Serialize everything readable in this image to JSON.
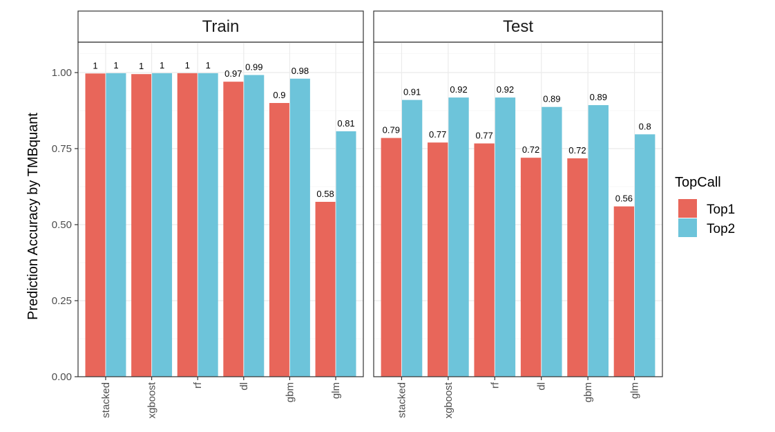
{
  "chart_data": {
    "type": "bar",
    "ylabel": "Prediction Accuracy by TMBquant",
    "xlabel": "",
    "ylim": [
      0,
      1.1
    ],
    "yticks": [
      0,
      0.25,
      0.5,
      0.75,
      1.0
    ],
    "ytick_labels": [
      "0.00",
      "0.25",
      "0.50",
      "0.75",
      "1.00"
    ],
    "categories": [
      "stacked",
      "xgboost",
      "rf",
      "dl",
      "gbm",
      "glm"
    ],
    "legend": {
      "title": "TopCall",
      "placement": "right",
      "entries": [
        {
          "name": "Top1",
          "color": "#E8665A"
        },
        {
          "name": "Top2",
          "color": "#6DC4DA"
        }
      ]
    },
    "facets": [
      {
        "title": "Train",
        "series": [
          {
            "name": "Top1",
            "values": [
              0.997,
              0.995,
              0.998,
              0.97,
              0.9,
              0.575
            ],
            "labels": [
              "1",
              "1",
              "1",
              "0.97",
              "0.9",
              "0.58"
            ]
          },
          {
            "name": "Top2",
            "values": [
              0.998,
              0.998,
              0.998,
              0.992,
              0.98,
              0.807
            ],
            "labels": [
              "1",
              "1",
              "1",
              "0.99",
              "0.98",
              "0.81"
            ]
          }
        ]
      },
      {
        "title": "Test",
        "series": [
          {
            "name": "Top1",
            "values": [
              0.785,
              0.77,
              0.767,
              0.72,
              0.718,
              0.56
            ],
            "labels": [
              "0.79",
              "0.77",
              "0.77",
              "0.72",
              "0.72",
              "0.56"
            ]
          },
          {
            "name": "Top2",
            "values": [
              0.91,
              0.918,
              0.918,
              0.887,
              0.893,
              0.797
            ],
            "labels": [
              "0.91",
              "0.92",
              "0.92",
              "0.89",
              "0.89",
              "0.8"
            ]
          }
        ]
      }
    ]
  },
  "colors": {
    "top1": "#E8665A",
    "top2": "#6DC4DA",
    "grid_major": "#EBEBEB",
    "grid_minor": "#F5F5F5",
    "strip_fill": "#FFFFFF",
    "panel_border": "#333333"
  }
}
